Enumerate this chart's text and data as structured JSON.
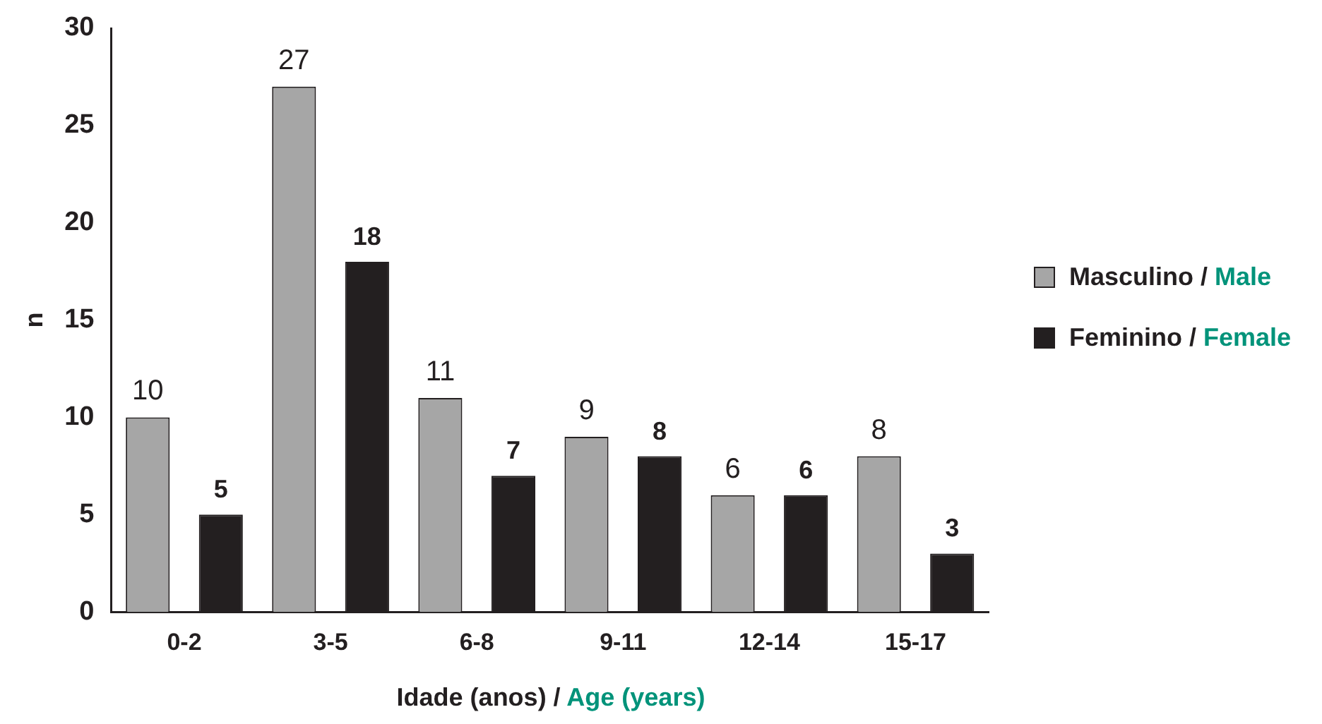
{
  "chart_data": {
    "type": "bar",
    "xlabel": "Idade (anos) / Age (years)",
    "ylabel": "n",
    "categories": [
      "0-2",
      "3-5",
      "6-8",
      "9-11",
      "12-14",
      "15-17"
    ],
    "series": [
      {
        "name": "Masculino / Male",
        "color": "#a6a6a6",
        "values": [
          10,
          27,
          11,
          9,
          6,
          8
        ]
      },
      {
        "name": "Feminino / Female",
        "color": "#231f20",
        "values": [
          5,
          18,
          7,
          8,
          6,
          3
        ]
      }
    ],
    "ylim": [
      0,
      30
    ],
    "yticks": [
      0,
      5,
      10,
      15,
      20,
      25,
      30
    ],
    "grid": false,
    "legend": "right",
    "data_labels": true
  }
}
